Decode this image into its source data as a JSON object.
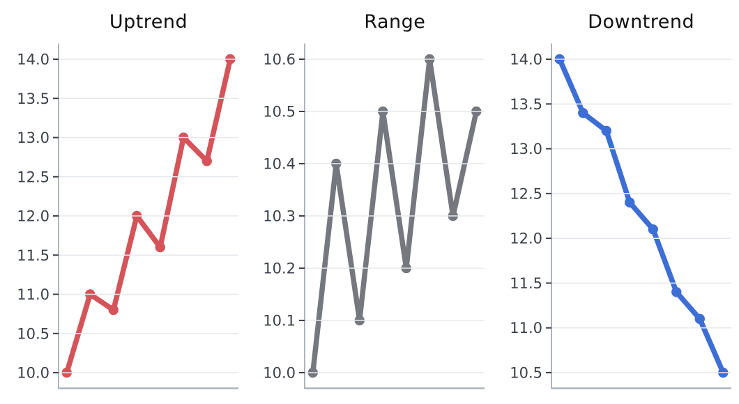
{
  "chart_data": [
    {
      "type": "line",
      "title": "Uptrend",
      "color": "#d4545a",
      "marker": "circle",
      "x": [
        0,
        1,
        2,
        3,
        4,
        5,
        6,
        7
      ],
      "values": [
        10.0,
        11.0,
        10.8,
        12.0,
        11.6,
        13.0,
        12.7,
        14.0
      ],
      "yticks": [
        10.0,
        10.5,
        11.0,
        11.5,
        12.0,
        12.5,
        13.0,
        13.5,
        14.0
      ],
      "ytick_labels": [
        "10.0",
        "10.5",
        "11.0",
        "11.5",
        "12.0",
        "12.5",
        "13.0",
        "13.5",
        "14.0"
      ],
      "ylim": [
        9.8,
        14.2
      ],
      "xlim": [
        -0.35,
        7.35
      ],
      "xlabel": "",
      "ylabel": "",
      "grid": "horizontal"
    },
    {
      "type": "line",
      "title": "Range",
      "color": "#75787e",
      "marker": "circle",
      "x": [
        0,
        1,
        2,
        3,
        4,
        5,
        6,
        7
      ],
      "values": [
        10.0,
        10.4,
        10.1,
        10.5,
        10.2,
        10.6,
        10.3,
        10.5
      ],
      "yticks": [
        10.0,
        10.1,
        10.2,
        10.3,
        10.4,
        10.5,
        10.6
      ],
      "ytick_labels": [
        "10.0",
        "10.1",
        "10.2",
        "10.3",
        "10.4",
        "10.5",
        "10.6"
      ],
      "ylim": [
        9.97,
        10.63
      ],
      "xlim": [
        -0.35,
        7.35
      ],
      "xlabel": "",
      "ylabel": "",
      "grid": "horizontal"
    },
    {
      "type": "line",
      "title": "Downtrend",
      "color": "#3c6ed5",
      "marker": "circle",
      "x": [
        0,
        1,
        2,
        3,
        4,
        5,
        6,
        7
      ],
      "values": [
        14.0,
        13.4,
        13.2,
        12.4,
        12.1,
        11.4,
        11.1,
        10.5
      ],
      "yticks": [
        10.5,
        11.0,
        11.5,
        12.0,
        12.5,
        13.0,
        13.5,
        14.0
      ],
      "ytick_labels": [
        "10.5",
        "11.0",
        "11.5",
        "12.0",
        "12.5",
        "13.0",
        "13.5",
        "14.0"
      ],
      "ylim": [
        10.325,
        14.175
      ],
      "xlim": [
        -0.35,
        7.35
      ],
      "xlabel": "",
      "ylabel": "",
      "grid": "horizontal"
    }
  ],
  "style": {
    "background_color": "#ffffff",
    "title_color": "#111111",
    "tick_label_color": "#3b4049",
    "tick_mark_color": "#3b4049",
    "spine_color": "#aeb4bc",
    "grid_color": "#e5e8ec"
  }
}
